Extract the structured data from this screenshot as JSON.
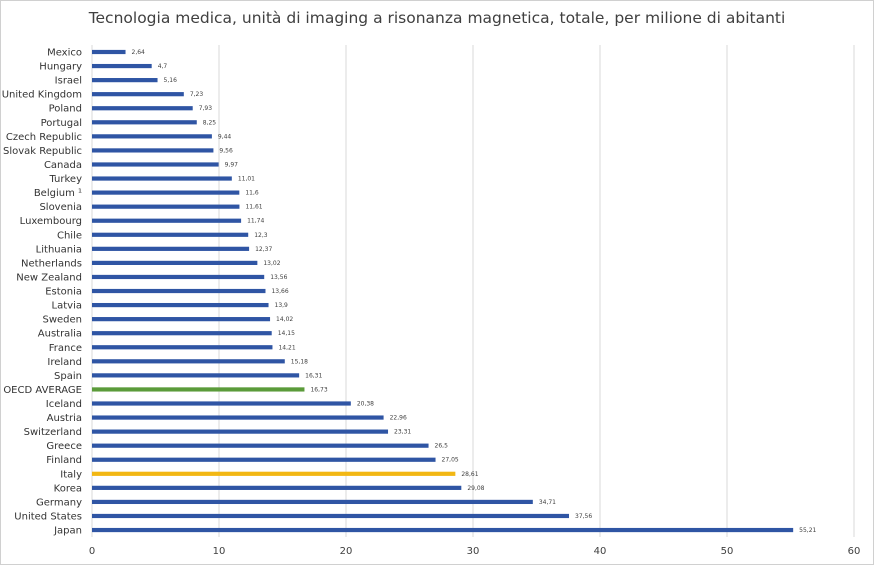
{
  "chart_data": {
    "type": "bar",
    "orientation": "horizontal",
    "title": "Tecnologia medica, unità di imaging a risonanza magnetica, totale, per milione di abitanti",
    "xlabel": "",
    "ylabel": "",
    "xlim": [
      0,
      60
    ],
    "x_ticks": [
      "0",
      "10",
      "20",
      "30",
      "40",
      "50",
      "60"
    ],
    "grid": "vertical",
    "legend": "none",
    "colors": {
      "default": "#2f55a4",
      "oecd_average": "#5b9b3a",
      "italy": "#f2b713"
    },
    "categories": [
      "Mexico",
      "Hungary",
      "Israel",
      "United Kingdom",
      "Poland",
      "Portugal",
      "Czech Republic",
      "Slovak Republic",
      "Canada",
      "Turkey",
      "Belgium ¹",
      "Slovenia",
      "Luxembourg",
      "Chile",
      "Lithuania",
      "Netherlands",
      "New Zealand",
      "Estonia",
      "Latvia",
      "Sweden",
      "Australia",
      "France",
      "Ireland",
      "Spain",
      "OECD AVERAGE",
      "Iceland",
      "Austria",
      "Switzerland",
      "Greece",
      "Finland",
      "Italy",
      "Korea",
      "Germany",
      "United States",
      "Japan"
    ],
    "values": [
      2.64,
      4.7,
      5.16,
      7.23,
      7.93,
      8.25,
      9.44,
      9.56,
      9.97,
      11.01,
      11.6,
      11.61,
      11.74,
      12.3,
      12.37,
      13.02,
      13.56,
      13.66,
      13.9,
      14.02,
      14.15,
      14.21,
      15.18,
      16.31,
      16.73,
      20.38,
      22.96,
      23.31,
      26.5,
      27.05,
      28.61,
      29.08,
      34.71,
      37.56,
      55.21
    ],
    "value_labels": [
      "2,64",
      "4,7",
      "5,16",
      "7,23",
      "7,93",
      "8,25",
      "9,44",
      "9,56",
      "9,97",
      "11,01",
      "11,6",
      "11,61",
      "11,74",
      "12,3",
      "12,37",
      "13,02",
      "13,56",
      "13,66",
      "13,9",
      "14,02",
      "14,15",
      "14,21",
      "15,18",
      "16,31",
      "16,73",
      "20,38",
      "22,96",
      "23,31",
      "26,5",
      "27,05",
      "28,61",
      "29,08",
      "34,71",
      "37,56",
      "55,21"
    ],
    "highlight": {
      "OECD AVERAGE": "oecd_average",
      "Italy": "italy"
    }
  }
}
